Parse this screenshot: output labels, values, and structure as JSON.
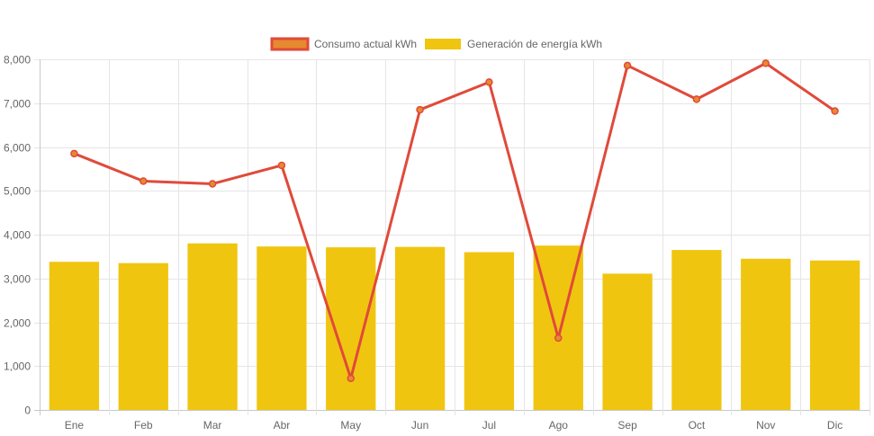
{
  "chart_data": {
    "type": "bar",
    "categories": [
      "Ene",
      "Feb",
      "Mar",
      "Abr",
      "May",
      "Jun",
      "Jul",
      "Ago",
      "Sep",
      "Oct",
      "Nov",
      "Dic"
    ],
    "series": [
      {
        "name": "Consumo actual kWh",
        "type": "line",
        "color": "#e04a3a",
        "point_color": "#e68a2e",
        "values": [
          5850,
          5220,
          5160,
          5580,
          720,
          6850,
          7480,
          1640,
          7860,
          7090,
          7910,
          6820
        ]
      },
      {
        "name": "Generación de energía kWh",
        "type": "bar",
        "color": "#f0c510",
        "values": [
          3380,
          3350,
          3800,
          3730,
          3710,
          3720,
          3600,
          3750,
          3110,
          3650,
          3450,
          3410
        ]
      }
    ],
    "y_ticks": [
      "0",
      "1,000",
      "2,000",
      "3,000",
      "4,000",
      "5,000",
      "6,000",
      "7,000",
      "8,000"
    ],
    "ylim": [
      0,
      8000
    ],
    "legend": "top-center",
    "grid": true
  },
  "legend": {
    "line_label": "Consumo actual kWh",
    "bar_label": "Generación de energía kWh"
  }
}
